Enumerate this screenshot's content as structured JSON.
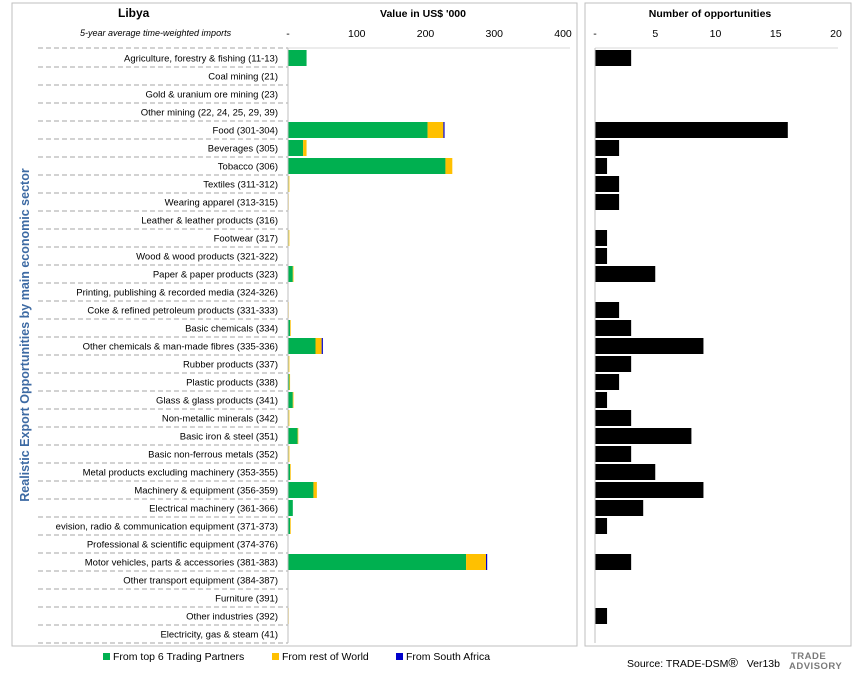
{
  "country": "Libya",
  "subtitle": "5-year average time-weighted imports",
  "y_axis_title": "Realistic Export Opportunities by main economic sector",
  "source": "Source: TRADE-DSM",
  "registered_mark": "®",
  "version": "Ver13b",
  "logo": {
    "line1": "TRADE",
    "line2": "ADVISORY"
  },
  "colors": {
    "top6": "#00b050",
    "rest_of_world": "#ffc000",
    "south_africa": "#0000cc",
    "opportunities": "#000000",
    "y_axis_title": "#3d6aa3"
  },
  "legend": [
    {
      "label": "From top 6 Trading Partners",
      "color": "#00b050"
    },
    {
      "label": "From rest of World",
      "color": "#ffc000"
    },
    {
      "label": "From South Africa",
      "color": "#0000cc"
    }
  ],
  "chart_data": [
    {
      "type": "bar",
      "orientation": "horizontal",
      "stacked": true,
      "title": "Value in US$ '000",
      "xlim": [
        0,
        400
      ],
      "xticks": [
        "-",
        "100",
        "200",
        "300",
        "400"
      ],
      "grid": false,
      "legend_position": "bottom",
      "categories": [
        "Agriculture, forestry & fishing (11-13)",
        "Coal mining (21)",
        "Gold & uranium ore mining (23)",
        "Other mining (22, 24, 25, 29, 39)",
        "Food (301-304)",
        "Beverages (305)",
        "Tobacco (306)",
        "Textiles (311-312)",
        "Wearing apparel (313-315)",
        "Leather & leather products (316)",
        "Footwear (317)",
        "Wood & wood products (321-322)",
        "Paper & paper products (323)",
        "Printing, publishing & recorded media (324-326)",
        "Coke & refined petroleum products (331-333)",
        "Basic chemicals (334)",
        "Other chemicals & man-made fibres (335-336)",
        "Rubber products (337)",
        "Plastic products (338)",
        "Glass & glass products (341)",
        "Non-metallic minerals (342)",
        "Basic iron & steel (351)",
        "Basic non-ferrous metals (352)",
        "Metal products excluding machinery (353-355)",
        "Machinery & equipment (356-359)",
        "Electrical machinery (361-366)",
        "evision, radio & communication equipment (371-373)",
        "Professional & scientific equipment (374-376)",
        "Motor vehicles, parts & accessories (381-383)",
        "Other transport equipment (384-387)",
        "Furniture (391)",
        "Other industries (392)",
        "Electricity, gas & steam (41)"
      ],
      "series": [
        {
          "name": "From top 6 Trading Partners",
          "values": [
            27,
            0,
            0,
            0,
            203,
            22,
            229,
            1,
            0,
            0,
            1,
            0,
            7,
            0,
            0,
            3,
            40,
            1,
            2,
            7,
            1,
            14,
            1,
            3,
            37,
            7,
            3,
            0,
            259,
            0,
            0,
            0,
            0
          ]
        },
        {
          "name": "From rest of World",
          "values": [
            0,
            0,
            0,
            0,
            23,
            5,
            10,
            1,
            1,
            0,
            1,
            0,
            1,
            0,
            1,
            1,
            9,
            1,
            1,
            1,
            1,
            1,
            1,
            1,
            5,
            0,
            1,
            0,
            29,
            0,
            0,
            1,
            0
          ]
        },
        {
          "name": "From South Africa",
          "values": [
            0,
            0,
            0,
            0,
            1,
            0,
            0,
            0,
            0,
            0,
            0,
            0,
            0,
            0,
            0,
            0,
            1,
            0,
            0,
            0,
            0,
            0,
            0,
            0,
            0,
            0,
            0,
            0,
            1,
            0,
            0,
            0,
            0
          ]
        }
      ]
    },
    {
      "type": "bar",
      "orientation": "horizontal",
      "title": "Number of opportunities",
      "xlim": [
        0,
        20
      ],
      "xticks": [
        "-",
        "5",
        "10",
        "15",
        "20"
      ],
      "grid": false,
      "values": [
        3,
        0,
        0,
        0,
        16,
        2,
        1,
        2,
        2,
        0,
        1,
        1,
        5,
        0,
        2,
        3,
        9,
        3,
        2,
        1,
        3,
        8,
        3,
        5,
        9,
        4,
        1,
        0,
        3,
        0,
        0,
        1,
        0
      ]
    }
  ]
}
